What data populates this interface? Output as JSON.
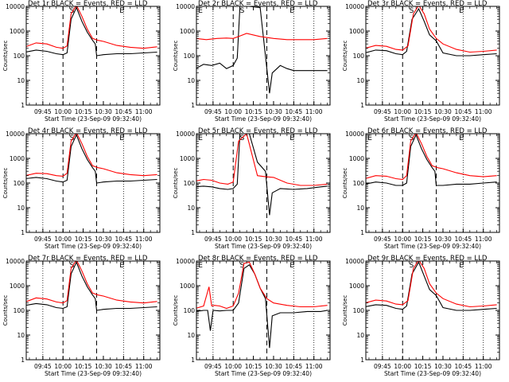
{
  "figure": {
    "x_tick_labels": [
      "09:45",
      "10:00",
      "10:15",
      "10:30",
      "10:45",
      "11:00"
    ],
    "y_tick_labels": [
      "1",
      "10",
      "100",
      "1000",
      "10000"
    ]
  },
  "chart_data": [
    {
      "panel": "1",
      "title": "Det 1r BLACK = Events, RED = LLD",
      "type": "line",
      "ylabel": "Counts/sec",
      "xlabel": "Start Time (23-Sep-09 09:32:40)",
      "x_unit": "UT hh:mm",
      "xlim": [
        "09:32:40",
        "11:12:00"
      ],
      "ylim": [
        1,
        10000
      ],
      "y_scale": "log",
      "x_ticks": [
        "09:45",
        "10:00",
        "10:15",
        "10:30",
        "10:45",
        "11:00"
      ],
      "markers": [
        "S",
        "E"
      ],
      "series": [
        {
          "name": "BLACK = Events",
          "color": "#000000",
          "x": [
            "09:32",
            "09:40",
            "09:48",
            "09:55",
            "10:00",
            "10:03",
            "10:06",
            "10:10",
            "10:14",
            "10:18",
            "10:22",
            "10:24",
            "10:25",
            "10:30",
            "10:40",
            "10:50",
            "11:00",
            "11:10"
          ],
          "y": [
            140,
            170,
            150,
            120,
            110,
            130,
            3000,
            9000,
            2500,
            900,
            420,
            300,
            100,
            110,
            120,
            120,
            130,
            140
          ]
        },
        {
          "name": "RED = LLD",
          "color": "#ff0000",
          "x": [
            "09:32",
            "09:40",
            "09:48",
            "09:55",
            "10:00",
            "10:03",
            "10:06",
            "10:10",
            "10:14",
            "10:18",
            "10:22",
            "10:26",
            "10:30",
            "10:40",
            "10:50",
            "11:00",
            "11:10"
          ],
          "y": [
            230,
            330,
            300,
            220,
            200,
            250,
            5000,
            11000,
            4000,
            1200,
            500,
            420,
            380,
            260,
            220,
            200,
            230
          ]
        }
      ]
    },
    {
      "panel": "2",
      "title": "Det 2r BLACK = Events, RED = LLD",
      "type": "line",
      "ylabel": "Counts/sec",
      "xlabel": "Start Time (23-Sep-09 09:32:40)",
      "x_unit": "UT hh:mm",
      "xlim": [
        "09:32:40",
        "11:12:00"
      ],
      "ylim": [
        1,
        10000
      ],
      "y_scale": "log",
      "x_ticks": [
        "09:45",
        "10:00",
        "10:15",
        "10:30",
        "10:45",
        "11:00"
      ],
      "markers": [
        "E",
        "S",
        "E"
      ],
      "series": [
        {
          "name": "BLACK = Events",
          "color": "#000000",
          "x": [
            "09:32",
            "09:38",
            "09:44",
            "09:50",
            "09:55",
            "10:00",
            "10:03",
            "10:05",
            "10:12",
            "10:20",
            "10:27",
            "10:29",
            "10:35",
            "10:40",
            "10:45",
            "10:50",
            "11:00",
            "11:10"
          ],
          "y": [
            30,
            45,
            40,
            50,
            30,
            40,
            80,
            10000,
            10000,
            9000,
            3,
            20,
            40,
            30,
            25,
            25,
            25,
            25
          ]
        },
        {
          "name": "RED = LLD",
          "color": "#ff0000",
          "x": [
            "09:32",
            "09:40",
            "09:48",
            "09:55",
            "10:00",
            "10:04",
            "10:10",
            "10:20",
            "10:30",
            "10:40",
            "10:50",
            "11:00",
            "11:10"
          ],
          "y": [
            500,
            450,
            500,
            520,
            500,
            600,
            800,
            600,
            500,
            450,
            450,
            450,
            500
          ]
        }
      ]
    },
    {
      "panel": "3",
      "title": "Det 3r BLACK = Events, RED = LLD",
      "type": "line",
      "ylabel": "Counts/sec",
      "xlabel": "Start Time (23-Sep-09 09:32:40)",
      "x_unit": "UT hh:mm",
      "xlim": [
        "09:32:40",
        "11:12:00"
      ],
      "ylim": [
        1,
        10000
      ],
      "y_scale": "log",
      "x_ticks": [
        "09:45",
        "10:00",
        "10:15",
        "10:30",
        "10:45",
        "11:00"
      ],
      "markers": [
        "S",
        "E"
      ],
      "series": [
        {
          "name": "BLACK = Events",
          "color": "#000000",
          "x": [
            "09:32",
            "09:40",
            "09:48",
            "09:55",
            "10:00",
            "10:03",
            "10:07",
            "10:12",
            "10:16",
            "10:20",
            "10:25",
            "10:30",
            "10:40",
            "10:50",
            "11:00",
            "11:10"
          ],
          "y": [
            130,
            170,
            160,
            120,
            110,
            150,
            3000,
            8000,
            2500,
            700,
            400,
            130,
            100,
            100,
            110,
            120
          ]
        },
        {
          "name": "RED = LLD",
          "color": "#ff0000",
          "x": [
            "09:32",
            "09:40",
            "09:48",
            "09:55",
            "10:00",
            "10:04",
            "10:08",
            "10:12",
            "10:16",
            "10:20",
            "10:25",
            "10:30",
            "10:40",
            "10:50",
            "11:00",
            "11:10"
          ],
          "y": [
            200,
            260,
            240,
            180,
            170,
            250,
            5000,
            11000,
            5000,
            1200,
            500,
            300,
            180,
            140,
            150,
            170
          ]
        }
      ]
    },
    {
      "panel": "4",
      "title": "Det 4r BLACK = Events, RED = LLD",
      "type": "line",
      "ylabel": "Counts/sec",
      "xlabel": "Start Time (23-Sep-09 09:32:40)",
      "x_unit": "UT hh:mm",
      "xlim": [
        "09:32:40",
        "11:12:00"
      ],
      "ylim": [
        1,
        10000
      ],
      "y_scale": "log",
      "x_ticks": [
        "09:45",
        "10:00",
        "10:15",
        "10:30",
        "10:45",
        "11:00"
      ],
      "markers": [
        "S",
        "E"
      ],
      "series": [
        {
          "name": "BLACK = Events",
          "color": "#000000",
          "x": [
            "09:32",
            "09:40",
            "09:48",
            "09:55",
            "10:00",
            "10:03",
            "10:06",
            "10:10",
            "10:14",
            "10:18",
            "10:22",
            "10:24",
            "10:25",
            "10:30",
            "10:40",
            "10:50",
            "11:00",
            "11:10"
          ],
          "y": [
            150,
            170,
            150,
            120,
            110,
            130,
            3000,
            9000,
            2500,
            900,
            420,
            300,
            100,
            110,
            120,
            120,
            130,
            140
          ]
        },
        {
          "name": "RED = LLD",
          "color": "#ff0000",
          "x": [
            "09:32",
            "09:40",
            "09:48",
            "09:55",
            "10:00",
            "10:03",
            "10:06",
            "10:10",
            "10:14",
            "10:18",
            "10:22",
            "10:26",
            "10:30",
            "10:40",
            "10:50",
            "11:00",
            "11:10"
          ],
          "y": [
            200,
            250,
            240,
            200,
            190,
            250,
            5000,
            11000,
            4000,
            1200,
            500,
            420,
            380,
            260,
            220,
            200,
            220
          ]
        }
      ]
    },
    {
      "panel": "5",
      "title": "Det 5r BLACK = Events, RED = LLD",
      "type": "line",
      "ylabel": "Counts/sec",
      "xlabel": "Start Time (23-Sep-09 09:32:40)",
      "x_unit": "UT hh:mm",
      "xlim": [
        "09:32:40",
        "11:12:00"
      ],
      "ylim": [
        1,
        10000
      ],
      "y_scale": "log",
      "x_ticks": [
        "09:45",
        "10:00",
        "10:15",
        "10:30",
        "10:45",
        "11:00"
      ],
      "markers": [
        "E",
        "S",
        "E"
      ],
      "series": [
        {
          "name": "BLACK = Events",
          "color": "#000000",
          "x": [
            "09:32",
            "09:38",
            "09:44",
            "09:50",
            "09:56",
            "10:00",
            "10:03",
            "10:05",
            "10:12",
            "10:18",
            "10:24",
            "10:27",
            "10:29",
            "10:35",
            "10:45",
            "10:55",
            "11:05",
            "11:10"
          ],
          "y": [
            70,
            75,
            70,
            60,
            55,
            60,
            90,
            10000,
            10000,
            700,
            300,
            5,
            40,
            60,
            55,
            60,
            70,
            75
          ]
        },
        {
          "name": "RED = LLD",
          "color": "#ff0000",
          "x": [
            "09:32",
            "09:38",
            "09:44",
            "09:50",
            "09:56",
            "10:00",
            "10:04",
            "10:10",
            "10:18",
            "10:24",
            "10:30",
            "10:40",
            "10:50",
            "11:00",
            "11:10"
          ],
          "y": [
            120,
            140,
            130,
            100,
            90,
            110,
            5000,
            10000,
            200,
            180,
            170,
            100,
            80,
            80,
            90
          ]
        }
      ]
    },
    {
      "panel": "6",
      "title": "Det 6r BLACK = Events, RED = LLD",
      "type": "line",
      "ylabel": "Counts/sec",
      "xlabel": "Start Time (23-Sep-09 09:32:40)",
      "x_unit": "UT hh:mm",
      "xlim": [
        "09:32:40",
        "11:12:00"
      ],
      "ylim": [
        1,
        10000
      ],
      "y_scale": "log",
      "x_ticks": [
        "09:45",
        "10:00",
        "10:15",
        "10:30",
        "10:45",
        "11:00"
      ],
      "markers": [
        "E",
        "S",
        "E"
      ],
      "series": [
        {
          "name": "BLACK = Events",
          "color": "#000000",
          "x": [
            "09:32",
            "09:40",
            "09:48",
            "09:55",
            "10:00",
            "10:03",
            "10:06",
            "10:10",
            "10:14",
            "10:18",
            "10:22",
            "10:24",
            "10:25",
            "10:30",
            "10:40",
            "10:50",
            "11:00",
            "11:10"
          ],
          "y": [
            90,
            110,
            100,
            80,
            80,
            100,
            3000,
            9000,
            2500,
            900,
            420,
            300,
            80,
            80,
            90,
            90,
            100,
            110
          ]
        },
        {
          "name": "RED = LLD",
          "color": "#ff0000",
          "x": [
            "09:32",
            "09:40",
            "09:48",
            "09:55",
            "10:00",
            "10:03",
            "10:06",
            "10:10",
            "10:14",
            "10:18",
            "10:22",
            "10:26",
            "10:30",
            "10:40",
            "10:50",
            "11:00",
            "11:10"
          ],
          "y": [
            150,
            200,
            190,
            150,
            140,
            200,
            5000,
            11000,
            4000,
            1200,
            500,
            420,
            380,
            260,
            200,
            180,
            200
          ]
        }
      ]
    },
    {
      "panel": "7",
      "title": "Det 7r BLACK = Events, RED = LLD",
      "type": "line",
      "ylabel": "Counts/sec",
      "xlabel": "Start Time (23-Sep-09 09:32:40)",
      "x_unit": "UT hh:mm",
      "xlim": [
        "09:32:40",
        "11:12:00"
      ],
      "ylim": [
        1,
        10000
      ],
      "y_scale": "log",
      "x_ticks": [
        "09:45",
        "10:00",
        "10:15",
        "10:30",
        "10:45",
        "11:00"
      ],
      "markers": [
        "S",
        "E"
      ],
      "series": [
        {
          "name": "BLACK = Events",
          "color": "#000000",
          "x": [
            "09:32",
            "09:40",
            "09:48",
            "09:55",
            "10:00",
            "10:03",
            "10:06",
            "10:10",
            "10:14",
            "10:18",
            "10:22",
            "10:24",
            "10:25",
            "10:30",
            "10:40",
            "10:50",
            "11:00",
            "11:10"
          ],
          "y": [
            160,
            190,
            170,
            130,
            120,
            140,
            3000,
            9000,
            2500,
            900,
            420,
            300,
            100,
            110,
            120,
            120,
            130,
            140
          ]
        },
        {
          "name": "RED = LLD",
          "color": "#ff0000",
          "x": [
            "09:32",
            "09:40",
            "09:48",
            "09:55",
            "10:00",
            "10:03",
            "10:06",
            "10:10",
            "10:14",
            "10:18",
            "10:22",
            "10:26",
            "10:30",
            "10:40",
            "10:50",
            "11:00",
            "11:10"
          ],
          "y": [
            220,
            320,
            290,
            220,
            200,
            250,
            5000,
            11000,
            4000,
            1200,
            500,
            420,
            380,
            260,
            220,
            200,
            230
          ]
        }
      ]
    },
    {
      "panel": "8",
      "title": "Det 8r BLACK = Events, RED = LLD",
      "type": "line",
      "ylabel": "Counts/sec",
      "xlabel": "Start Time (23-Sep-09 09:32:40)",
      "x_unit": "UT hh:mm",
      "xlim": [
        "09:32:40",
        "11:12:00"
      ],
      "ylim": [
        1,
        10000
      ],
      "y_scale": "log",
      "x_ticks": [
        "09:45",
        "10:00",
        "10:15",
        "10:30",
        "10:45",
        "11:00"
      ],
      "markers": [
        "E",
        "S",
        "E"
      ],
      "series": [
        {
          "name": "BLACK = Events",
          "color": "#000000",
          "x": [
            "09:32",
            "09:38",
            "09:41",
            "09:43",
            "09:45",
            "09:50",
            "09:55",
            "10:00",
            "10:04",
            "10:08",
            "10:12",
            "10:16",
            "10:20",
            "10:24",
            "10:27",
            "10:29",
            "10:35",
            "10:45",
            "10:55",
            "11:05",
            "11:10"
          ],
          "y": [
            90,
            100,
            100,
            15,
            100,
            95,
            100,
            100,
            200,
            5000,
            7000,
            3000,
            800,
            300,
            3,
            60,
            80,
            80,
            90,
            90,
            100
          ]
        },
        {
          "name": "RED = LLD",
          "color": "#ff0000",
          "x": [
            "09:32",
            "09:38",
            "09:42",
            "09:44",
            "09:46",
            "09:50",
            "09:55",
            "10:00",
            "10:04",
            "10:08",
            "10:12",
            "10:16",
            "10:20",
            "10:25",
            "10:30",
            "10:40",
            "10:50",
            "11:00",
            "11:10"
          ],
          "y": [
            120,
            150,
            900,
            150,
            160,
            150,
            120,
            150,
            500,
            8000,
            9000,
            3000,
            800,
            300,
            200,
            160,
            140,
            140,
            160
          ]
        }
      ]
    },
    {
      "panel": "9",
      "title": "Det 9r BLACK = Events, RED = LLD",
      "type": "line",
      "ylabel": "Counts/sec",
      "xlabel": "Start Time (23-Sep-09 09:32:40)",
      "x_unit": "UT hh:mm",
      "xlim": [
        "09:32:40",
        "11:12:00"
      ],
      "ylim": [
        1,
        10000
      ],
      "y_scale": "log",
      "x_ticks": [
        "09:45",
        "10:00",
        "10:15",
        "10:30",
        "10:45",
        "11:00"
      ],
      "markers": [
        "S",
        "E"
      ],
      "series": [
        {
          "name": "BLACK = Events",
          "color": "#000000",
          "x": [
            "09:32",
            "09:40",
            "09:48",
            "09:55",
            "10:00",
            "10:03",
            "10:07",
            "10:12",
            "10:16",
            "10:20",
            "10:25",
            "10:30",
            "10:40",
            "10:50",
            "11:00",
            "11:10"
          ],
          "y": [
            140,
            170,
            160,
            120,
            110,
            150,
            3000,
            9000,
            2500,
            700,
            400,
            130,
            100,
            100,
            110,
            120
          ]
        },
        {
          "name": "RED = LLD",
          "color": "#ff0000",
          "x": [
            "09:32",
            "09:40",
            "09:48",
            "09:55",
            "10:00",
            "10:04",
            "10:08",
            "10:12",
            "10:16",
            "10:20",
            "10:25",
            "10:30",
            "10:40",
            "10:50",
            "11:00",
            "11:10"
          ],
          "y": [
            200,
            260,
            240,
            180,
            170,
            250,
            5000,
            11000,
            5000,
            1200,
            500,
            300,
            180,
            140,
            150,
            170
          ]
        }
      ]
    }
  ]
}
